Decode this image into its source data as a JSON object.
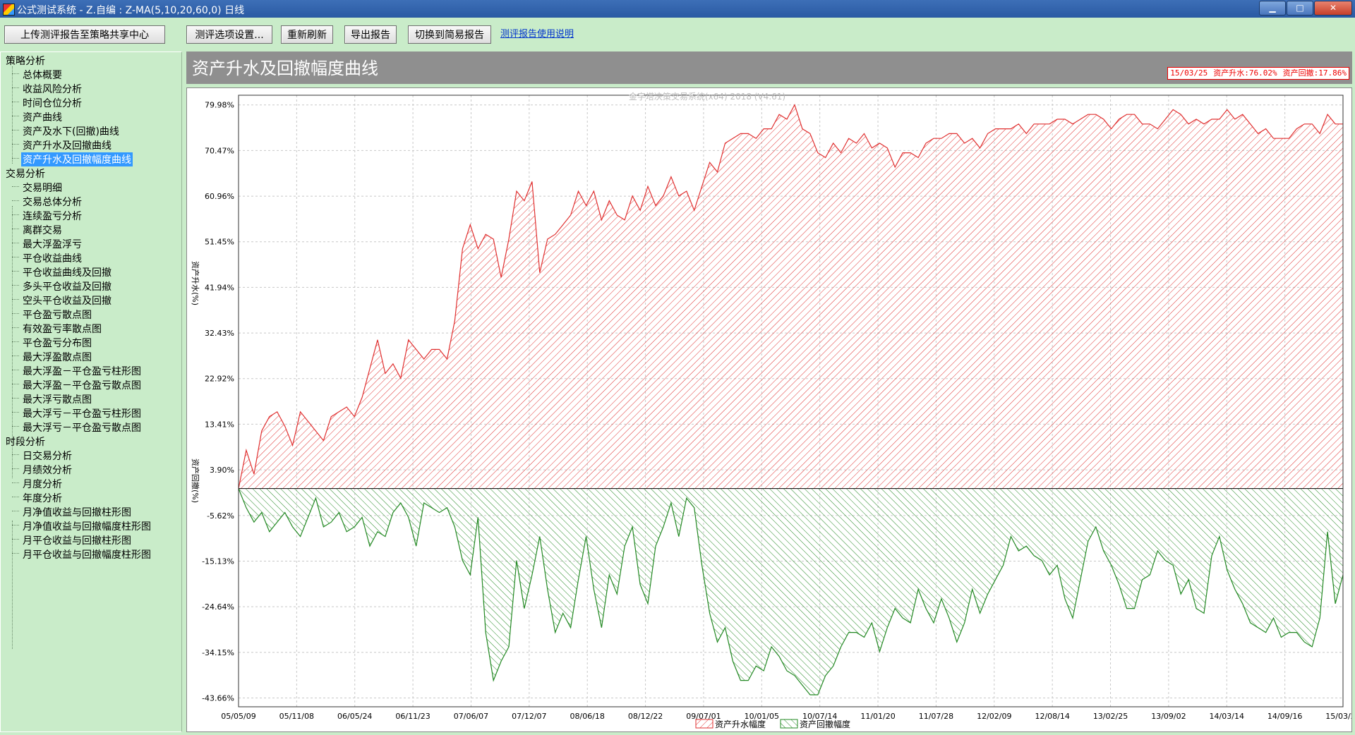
{
  "window": {
    "title": "公式测试系统 - Z.自编 : Z-MA(5,10,20,60,0) 日线",
    "controls": {
      "minimize": "▁",
      "maximize": "□",
      "close": "✕"
    }
  },
  "toolbar": {
    "upload_label": "上传测评报告至策略共享中心",
    "settings_label": "测评选项设置...",
    "refresh_label": "重新刷新",
    "export_label": "导出报告",
    "switch_label": "切换到简易报告",
    "help_link": "测评报告使用说明"
  },
  "sidebar": {
    "groups": [
      {
        "label": "策略分析",
        "items": [
          "总体概要",
          "收益风险分析",
          "时间仓位分析",
          "资产曲线",
          "资产及水下(回撤)曲线",
          "资产升水及回撤曲线",
          "资产升水及回撤幅度曲线"
        ]
      },
      {
        "label": "交易分析",
        "items": [
          "交易明细",
          "交易总体分析",
          "连续盈亏分析",
          "离群交易",
          "最大浮盈浮亏",
          "平仓收益曲线",
          "平仓收益曲线及回撤",
          "多头平仓收益及回撤",
          "空头平仓收益及回撤",
          "平仓盈亏散点图",
          "有效盈亏率散点图",
          "平仓盈亏分布图",
          "最大浮盈散点图",
          "最大浮盈－平仓盈亏柱形图",
          "最大浮盈－平仓盈亏散点图",
          "最大浮亏散点图",
          "最大浮亏－平仓盈亏柱形图",
          "最大浮亏－平仓盈亏散点图"
        ]
      },
      {
        "label": "时段分析",
        "items": [
          "日交易分析",
          "月绩效分析",
          "月度分析",
          "年度分析",
          "月净值收益与回撤柱形图",
          "月净值收益与回撤幅度柱形图",
          "月平仓收益与回撤柱形图",
          "月平仓收益与回撤幅度柱形图"
        ]
      }
    ],
    "selected": "资产升水及回撤幅度曲线"
  },
  "header": {
    "title": "资产升水及回撤幅度曲线",
    "readout": {
      "date": "15/03/25",
      "premium": "资产升水:76.02%",
      "drawdown": "资产回撤:17.86%"
    }
  },
  "chart_data": {
    "type": "area",
    "watermark": "金字塔决策交易系统(x64) 2018 (V4.61)",
    "ylabel_top": "资产升水(%)",
    "ylabel_bottom": "资产回撤(%)",
    "yticks": [
      "79.98%",
      "70.47%",
      "60.96%",
      "51.45%",
      "41.94%",
      "32.43%",
      "22.92%",
      "13.41%",
      "3.90%",
      "-5.62%",
      "-15.13%",
      "-24.64%",
      "-34.15%",
      "-43.66%"
    ],
    "ytick_values": [
      79.98,
      70.47,
      60.96,
      51.45,
      41.94,
      32.43,
      22.92,
      13.41,
      3.9,
      -5.62,
      -15.13,
      -24.64,
      -34.15,
      -43.66
    ],
    "ylim": [
      -45.5,
      82.0
    ],
    "xticks": [
      "05/05/09",
      "05/11/08",
      "06/05/24",
      "06/11/23",
      "07/06/07",
      "07/12/07",
      "08/06/18",
      "08/12/22",
      "09/07/01",
      "10/01/05",
      "10/07/14",
      "11/01/20",
      "11/07/28",
      "12/02/09",
      "12/08/14",
      "13/02/25",
      "13/09/02",
      "14/03/14",
      "14/09/16",
      "15/03/27"
    ],
    "colors": {
      "premium": "#e03030",
      "drawdown": "#228822"
    },
    "series": [
      {
        "name": "资产升水幅度",
        "values": [
          0,
          8,
          3,
          12,
          15,
          16,
          13,
          9,
          16,
          14,
          12,
          10,
          15,
          16,
          17,
          15,
          19,
          25,
          31,
          24,
          26,
          23,
          31,
          29,
          27,
          29,
          29,
          27,
          35,
          50,
          55,
          50,
          53,
          52,
          44,
          52,
          62,
          60,
          64,
          45,
          52,
          53,
          55,
          57,
          62,
          59,
          62,
          56,
          60,
          57,
          56,
          61,
          58,
          63,
          59,
          61,
          65,
          61,
          62,
          58,
          63,
          68,
          66,
          72,
          73,
          74,
          74,
          73,
          75,
          75,
          78,
          77,
          80,
          75,
          74,
          70,
          69,
          72,
          70,
          73,
          72,
          74,
          71,
          72,
          71,
          67,
          70,
          70,
          69,
          72,
          73,
          73,
          74,
          74,
          72,
          73,
          71,
          74,
          75,
          75,
          75,
          76,
          74,
          76,
          76,
          76,
          77,
          77,
          76,
          77,
          78,
          78,
          77,
          75,
          77,
          78,
          78,
          76,
          76,
          75,
          77,
          79,
          78,
          76,
          77,
          76,
          77,
          77,
          79,
          77,
          78,
          76,
          74,
          75,
          73,
          73,
          73,
          75,
          76,
          76,
          74,
          78,
          76,
          76
        ]
      },
      {
        "name": "资产回撤幅度",
        "values": [
          0,
          -4,
          -7,
          -5,
          -9,
          -7,
          -5,
          -8,
          -10,
          -6,
          -2,
          -8,
          -7,
          -5,
          -9,
          -8,
          -6,
          -12,
          -9,
          -10,
          -5,
          -3,
          -6,
          -12,
          -3,
          -4,
          -5,
          -4,
          -8,
          -15,
          -18,
          -6,
          -30,
          -40,
          -36,
          -33,
          -15,
          -25,
          -18,
          -10,
          -21,
          -30,
          -26,
          -29,
          -19,
          -10,
          -21,
          -29,
          -18,
          -22,
          -12,
          -8,
          -20,
          -24,
          -12,
          -8,
          -3,
          -10,
          -2,
          -4,
          -16,
          -26,
          -32,
          -29,
          -36,
          -40,
          -40,
          -37,
          -38,
          -33,
          -35,
          -38,
          -39,
          -41,
          -43,
          -43,
          -39,
          -37,
          -33,
          -30,
          -30,
          -31,
          -28,
          -34,
          -29,
          -25,
          -27,
          -28,
          -21,
          -25,
          -28,
          -23,
          -27,
          -32,
          -28,
          -21,
          -26,
          -22,
          -19,
          -16,
          -10,
          -13,
          -12,
          -14,
          -15,
          -18,
          -16,
          -23,
          -27,
          -19,
          -11,
          -8,
          -13,
          -16,
          -20,
          -25,
          -25,
          -19,
          -18,
          -13,
          -15,
          -16,
          -22,
          -19,
          -25,
          -26,
          -14,
          -10,
          -17,
          -21,
          -24,
          -28,
          -29,
          -30,
          -27,
          -31,
          -30,
          -30,
          -32,
          -33,
          -27,
          -9,
          -24,
          -18
        ]
      }
    ],
    "legend": [
      "资产升水幅度",
      "资产回撤幅度"
    ],
    "legend_position": "bottom-center"
  }
}
